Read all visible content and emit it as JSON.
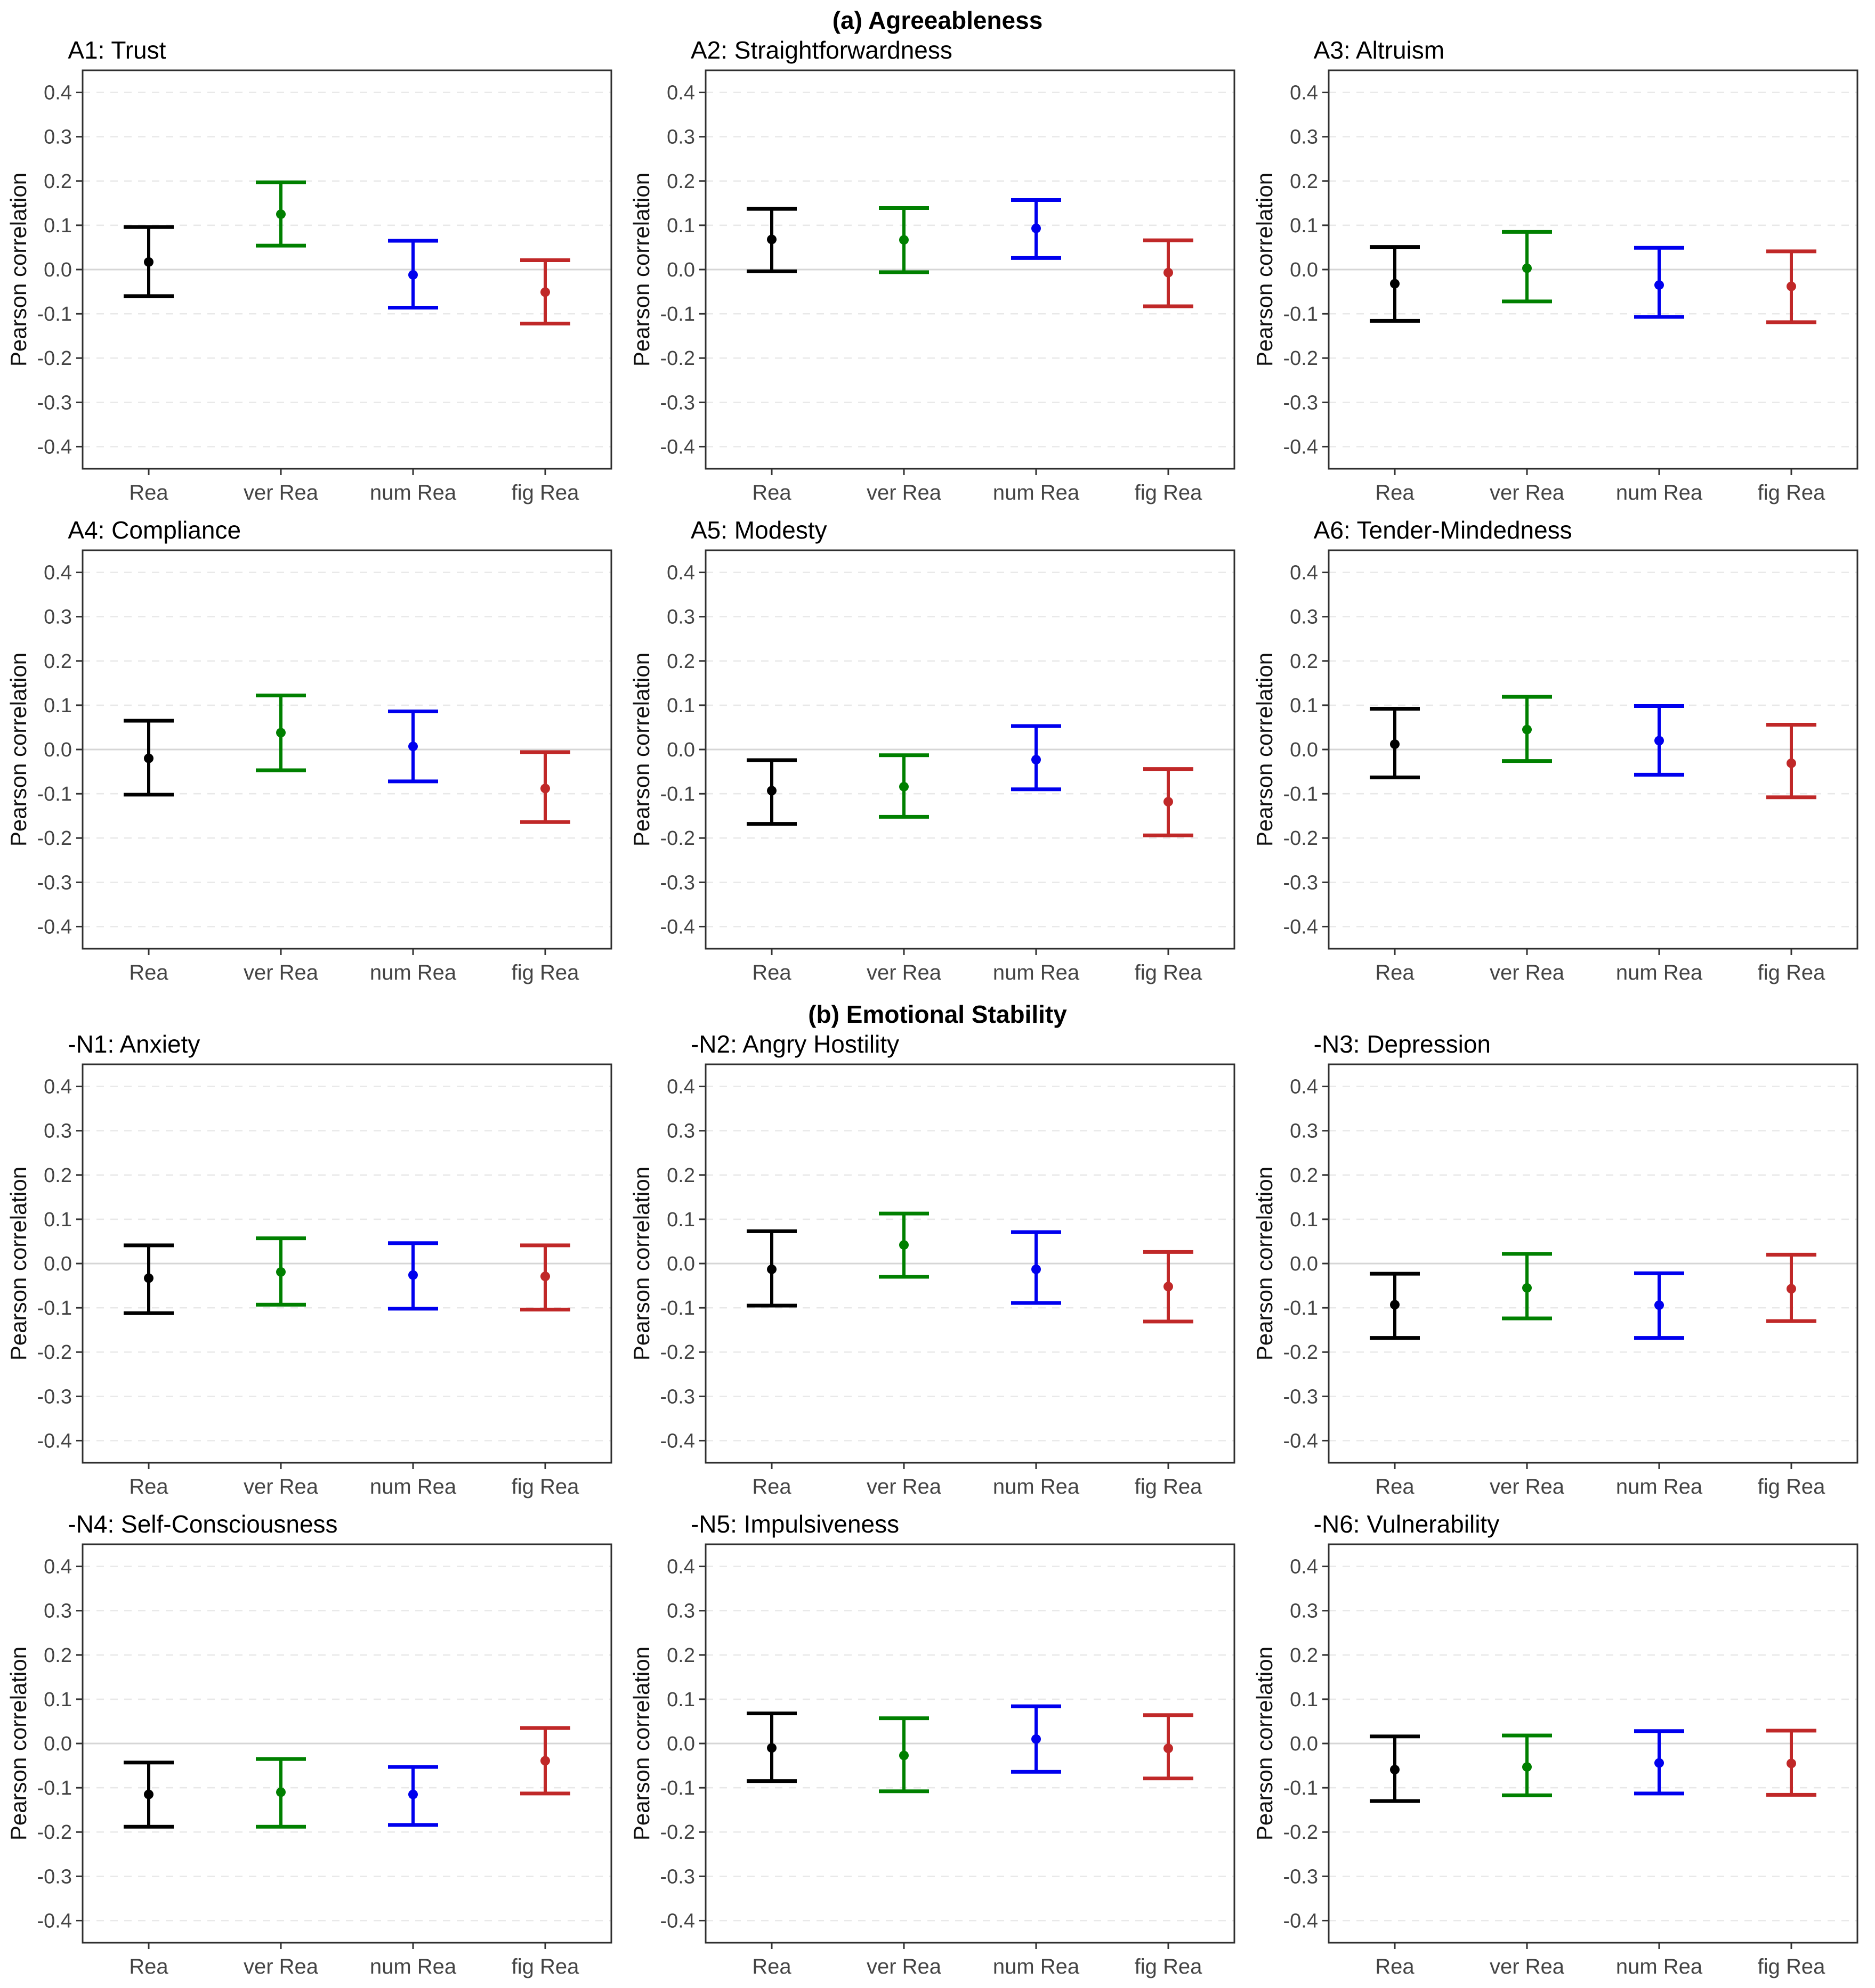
{
  "page": {
    "background": "#ffffff"
  },
  "sections": [
    {
      "id": "a",
      "header": "(a) Agreeableness"
    },
    {
      "id": "b",
      "header": "(b) Emotional Stability"
    }
  ],
  "axis": {
    "ylabel": "Pearson correlation",
    "yticks": [
      0.4,
      0.3,
      0.2,
      0.1,
      0.0,
      -0.1,
      -0.2,
      -0.3,
      -0.4
    ],
    "ylim": [
      -0.45,
      0.45
    ],
    "grid": "dashed horizontal at each 0.1, solid line at 0",
    "categories": [
      "Rea",
      "ver Rea",
      "num Rea",
      "fig Rea"
    ],
    "series_colors": {
      "Rea": "#000000",
      "ver Rea": "#008000",
      "num Rea": "#0000EE",
      "fig Rea": "#C02828"
    }
  },
  "style_colors": {
    "tick_text": "#444444",
    "axis_text": "#111111",
    "panel_border": "#2f2f2f",
    "gridline": "#e8e8e8",
    "zero_line": "#d6d6d6",
    "tick_mark": "#333333"
  },
  "chart_data": [
    {
      "type": "errorbar",
      "section": "a",
      "title": "A1: Trust",
      "ylabel": "Pearson correlation",
      "categories": [
        "Rea",
        "ver Rea",
        "num Rea",
        "fig Rea"
      ],
      "points": [
        {
          "category": "Rea",
          "center": 0.017,
          "lower": -0.06,
          "upper": 0.096,
          "color": "#000000"
        },
        {
          "category": "ver Rea",
          "center": 0.125,
          "lower": 0.054,
          "upper": 0.197,
          "color": "#008000"
        },
        {
          "category": "num Rea",
          "center": -0.012,
          "lower": -0.086,
          "upper": 0.065,
          "color": "#0000EE"
        },
        {
          "category": "fig Rea",
          "center": -0.051,
          "lower": -0.122,
          "upper": 0.021,
          "color": "#C02828"
        }
      ]
    },
    {
      "type": "errorbar",
      "section": "a",
      "title": "A2: Straightforwardness",
      "ylabel": "Pearson correlation",
      "categories": [
        "Rea",
        "ver Rea",
        "num Rea",
        "fig Rea"
      ],
      "points": [
        {
          "category": "Rea",
          "center": 0.068,
          "lower": -0.004,
          "upper": 0.137,
          "color": "#000000"
        },
        {
          "category": "ver Rea",
          "center": 0.067,
          "lower": -0.006,
          "upper": 0.139,
          "color": "#008000"
        },
        {
          "category": "num Rea",
          "center": 0.093,
          "lower": 0.026,
          "upper": 0.157,
          "color": "#0000EE"
        },
        {
          "category": "fig Rea",
          "center": -0.007,
          "lower": -0.083,
          "upper": 0.066,
          "color": "#C02828"
        }
      ]
    },
    {
      "type": "errorbar",
      "section": "a",
      "title": "A3: Altruism",
      "ylabel": "Pearson correlation",
      "categories": [
        "Rea",
        "ver Rea",
        "num Rea",
        "fig Rea"
      ],
      "points": [
        {
          "category": "Rea",
          "center": -0.032,
          "lower": -0.116,
          "upper": 0.051,
          "color": "#000000"
        },
        {
          "category": "ver Rea",
          "center": 0.003,
          "lower": -0.072,
          "upper": 0.085,
          "color": "#008000"
        },
        {
          "category": "num Rea",
          "center": -0.035,
          "lower": -0.107,
          "upper": 0.049,
          "color": "#0000EE"
        },
        {
          "category": "fig Rea",
          "center": -0.038,
          "lower": -0.119,
          "upper": 0.041,
          "color": "#C02828"
        }
      ]
    },
    {
      "type": "errorbar",
      "section": "a",
      "title": "A4: Compliance",
      "ylabel": "Pearson correlation",
      "categories": [
        "Rea",
        "ver Rea",
        "num Rea",
        "fig Rea"
      ],
      "points": [
        {
          "category": "Rea",
          "center": -0.02,
          "lower": -0.102,
          "upper": 0.065,
          "color": "#000000"
        },
        {
          "category": "ver Rea",
          "center": 0.038,
          "lower": -0.047,
          "upper": 0.122,
          "color": "#008000"
        },
        {
          "category": "num Rea",
          "center": 0.007,
          "lower": -0.072,
          "upper": 0.086,
          "color": "#0000EE"
        },
        {
          "category": "fig Rea",
          "center": -0.088,
          "lower": -0.164,
          "upper": -0.006,
          "color": "#C02828"
        }
      ]
    },
    {
      "type": "errorbar",
      "section": "a",
      "title": "A5: Modesty",
      "ylabel": "Pearson correlation",
      "categories": [
        "Rea",
        "ver Rea",
        "num Rea",
        "fig Rea"
      ],
      "points": [
        {
          "category": "Rea",
          "center": -0.093,
          "lower": -0.168,
          "upper": -0.024,
          "color": "#000000"
        },
        {
          "category": "ver Rea",
          "center": -0.084,
          "lower": -0.152,
          "upper": -0.013,
          "color": "#008000"
        },
        {
          "category": "num Rea",
          "center": -0.023,
          "lower": -0.09,
          "upper": 0.053,
          "color": "#0000EE"
        },
        {
          "category": "fig Rea",
          "center": -0.118,
          "lower": -0.194,
          "upper": -0.044,
          "color": "#C02828"
        }
      ]
    },
    {
      "type": "errorbar",
      "section": "a",
      "title": "A6: Tender-Mindedness",
      "ylabel": "Pearson correlation",
      "categories": [
        "Rea",
        "ver Rea",
        "num Rea",
        "fig Rea"
      ],
      "points": [
        {
          "category": "Rea",
          "center": 0.012,
          "lower": -0.063,
          "upper": 0.092,
          "color": "#000000"
        },
        {
          "category": "ver Rea",
          "center": 0.045,
          "lower": -0.026,
          "upper": 0.119,
          "color": "#008000"
        },
        {
          "category": "num Rea",
          "center": 0.02,
          "lower": -0.057,
          "upper": 0.098,
          "color": "#0000EE"
        },
        {
          "category": "fig Rea",
          "center": -0.031,
          "lower": -0.108,
          "upper": 0.056,
          "color": "#C02828"
        }
      ]
    },
    {
      "type": "errorbar",
      "section": "b",
      "title": "-N1: Anxiety",
      "ylabel": "Pearson correlation",
      "categories": [
        "Rea",
        "ver Rea",
        "num Rea",
        "fig Rea"
      ],
      "points": [
        {
          "category": "Rea",
          "center": -0.033,
          "lower": -0.112,
          "upper": 0.041,
          "color": "#000000"
        },
        {
          "category": "ver Rea",
          "center": -0.019,
          "lower": -0.093,
          "upper": 0.057,
          "color": "#008000"
        },
        {
          "category": "num Rea",
          "center": -0.026,
          "lower": -0.102,
          "upper": 0.046,
          "color": "#0000EE"
        },
        {
          "category": "fig Rea",
          "center": -0.029,
          "lower": -0.104,
          "upper": 0.041,
          "color": "#C02828"
        }
      ]
    },
    {
      "type": "errorbar",
      "section": "b",
      "title": "-N2: Angry Hostility",
      "ylabel": "Pearson correlation",
      "categories": [
        "Rea",
        "ver Rea",
        "num Rea",
        "fig Rea"
      ],
      "points": [
        {
          "category": "Rea",
          "center": -0.013,
          "lower": -0.095,
          "upper": 0.073,
          "color": "#000000"
        },
        {
          "category": "ver Rea",
          "center": 0.042,
          "lower": -0.03,
          "upper": 0.113,
          "color": "#008000"
        },
        {
          "category": "num Rea",
          "center": -0.013,
          "lower": -0.089,
          "upper": 0.071,
          "color": "#0000EE"
        },
        {
          "category": "fig Rea",
          "center": -0.052,
          "lower": -0.131,
          "upper": 0.026,
          "color": "#C02828"
        }
      ]
    },
    {
      "type": "errorbar",
      "section": "b",
      "title": "-N3: Depression",
      "ylabel": "Pearson correlation",
      "categories": [
        "Rea",
        "ver Rea",
        "num Rea",
        "fig Rea"
      ],
      "points": [
        {
          "category": "Rea",
          "center": -0.093,
          "lower": -0.168,
          "upper": -0.023,
          "color": "#000000"
        },
        {
          "category": "ver Rea",
          "center": -0.055,
          "lower": -0.124,
          "upper": 0.022,
          "color": "#008000"
        },
        {
          "category": "num Rea",
          "center": -0.094,
          "lower": -0.168,
          "upper": -0.022,
          "color": "#0000EE"
        },
        {
          "category": "fig Rea",
          "center": -0.057,
          "lower": -0.13,
          "upper": 0.02,
          "color": "#C02828"
        }
      ]
    },
    {
      "type": "errorbar",
      "section": "b",
      "title": "-N4: Self-Consciousness",
      "ylabel": "Pearson correlation",
      "categories": [
        "Rea",
        "ver Rea",
        "num Rea",
        "fig Rea"
      ],
      "points": [
        {
          "category": "Rea",
          "center": -0.115,
          "lower": -0.188,
          "upper": -0.043,
          "color": "#000000"
        },
        {
          "category": "ver Rea",
          "center": -0.11,
          "lower": -0.188,
          "upper": -0.035,
          "color": "#008000"
        },
        {
          "category": "num Rea",
          "center": -0.115,
          "lower": -0.184,
          "upper": -0.053,
          "color": "#0000EE"
        },
        {
          "category": "fig Rea",
          "center": -0.039,
          "lower": -0.113,
          "upper": 0.035,
          "color": "#C02828"
        }
      ]
    },
    {
      "type": "errorbar",
      "section": "b",
      "title": "-N5: Impulsiveness",
      "ylabel": "Pearson correlation",
      "categories": [
        "Rea",
        "ver Rea",
        "num Rea",
        "fig Rea"
      ],
      "points": [
        {
          "category": "Rea",
          "center": -0.01,
          "lower": -0.085,
          "upper": 0.068,
          "color": "#000000"
        },
        {
          "category": "ver Rea",
          "center": -0.027,
          "lower": -0.108,
          "upper": 0.057,
          "color": "#008000"
        },
        {
          "category": "num Rea",
          "center": 0.01,
          "lower": -0.064,
          "upper": 0.084,
          "color": "#0000EE"
        },
        {
          "category": "fig Rea",
          "center": -0.011,
          "lower": -0.079,
          "upper": 0.064,
          "color": "#C02828"
        }
      ]
    },
    {
      "type": "errorbar",
      "section": "b",
      "title": "-N6: Vulnerability",
      "ylabel": "Pearson correlation",
      "categories": [
        "Rea",
        "ver Rea",
        "num Rea",
        "fig Rea"
      ],
      "points": [
        {
          "category": "Rea",
          "center": -0.059,
          "lower": -0.13,
          "upper": 0.016,
          "color": "#000000"
        },
        {
          "category": "ver Rea",
          "center": -0.053,
          "lower": -0.117,
          "upper": 0.018,
          "color": "#008000"
        },
        {
          "category": "num Rea",
          "center": -0.044,
          "lower": -0.113,
          "upper": 0.028,
          "color": "#0000EE"
        },
        {
          "category": "fig Rea",
          "center": -0.045,
          "lower": -0.116,
          "upper": 0.029,
          "color": "#C02828"
        }
      ]
    }
  ]
}
